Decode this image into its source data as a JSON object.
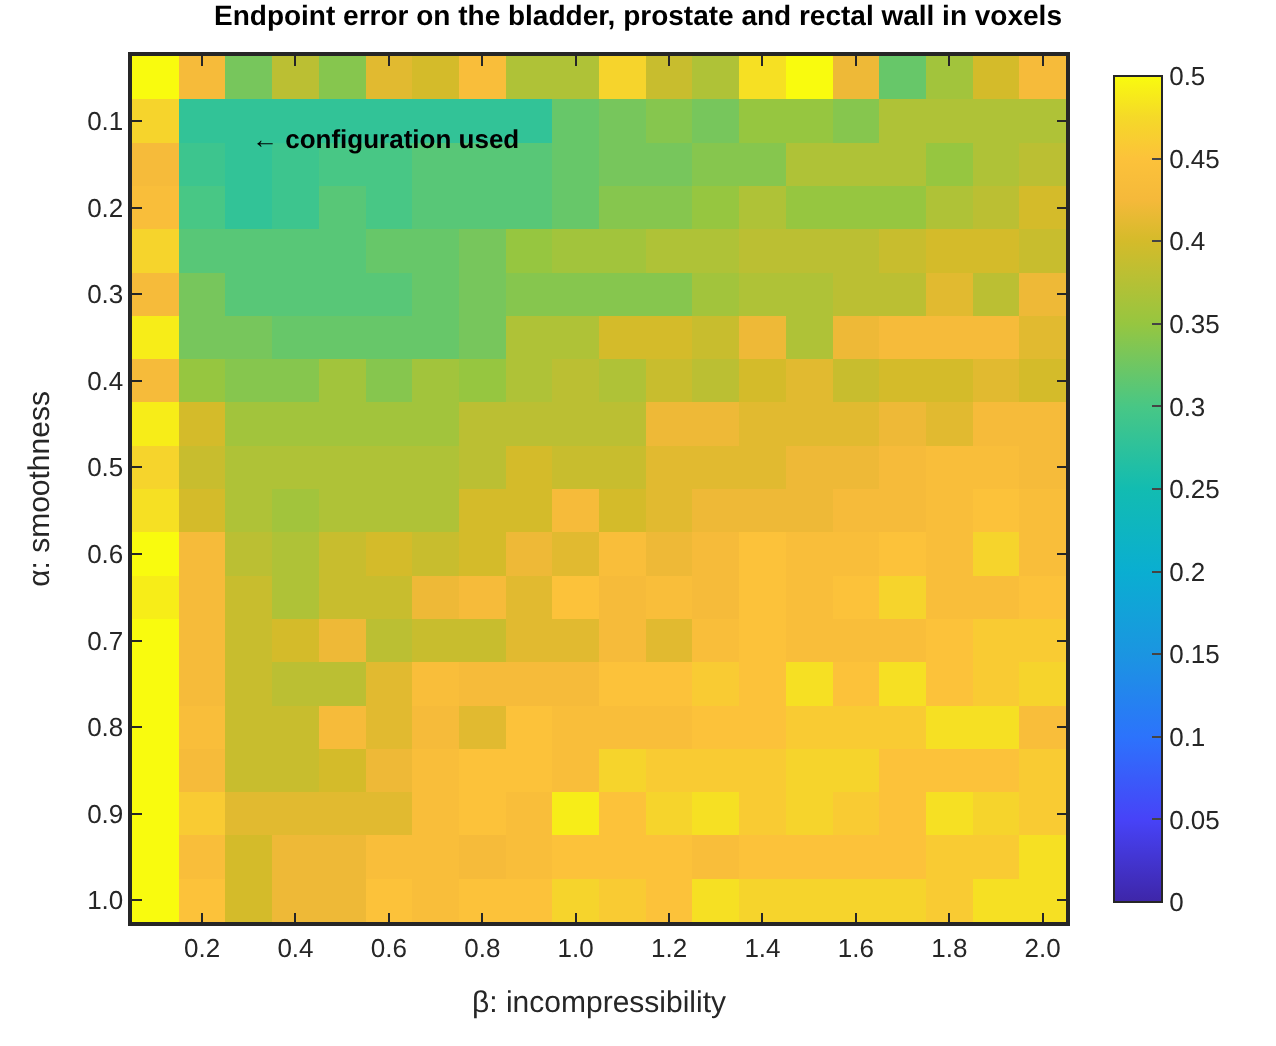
{
  "chart_data": {
    "type": "heatmap",
    "title": "Endpoint error on the bladder, prostate and rectal wall in voxels",
    "xlabel": "β: incompressibility",
    "ylabel": "α: smoothness",
    "x": [
      0.1,
      0.2,
      0.3,
      0.4,
      0.5,
      0.6,
      0.7,
      0.8,
      0.9,
      1.0,
      1.1,
      1.2,
      1.3,
      1.4,
      1.5,
      1.6,
      1.7,
      1.8,
      1.9,
      2.0
    ],
    "y": [
      0.05,
      0.1,
      0.15,
      0.2,
      0.25,
      0.3,
      0.35,
      0.4,
      0.45,
      0.5,
      0.55,
      0.6,
      0.65,
      0.7,
      0.75,
      0.8,
      0.85,
      0.9,
      0.95,
      1.0
    ],
    "xlim": [
      0.05,
      2.05
    ],
    "ylim": [
      1.025,
      0.025
    ],
    "xticks": [
      0.2,
      0.4,
      0.6,
      0.8,
      {
        "value": 1.0,
        "label": "1.0"
      },
      1.2,
      1.4,
      1.6,
      1.8,
      {
        "value": 2.0,
        "label": "2.0"
      }
    ],
    "yticks": [
      0.1,
      0.2,
      0.3,
      0.4,
      0.5,
      0.6,
      0.7,
      0.8,
      0.9,
      {
        "value": 1.0,
        "label": "1.0"
      }
    ],
    "clim": [
      0,
      0.5
    ],
    "cticks": [
      0,
      0.05,
      0.1,
      0.15,
      0.2,
      0.25,
      0.3,
      0.35,
      0.4,
      0.45,
      0.5
    ],
    "annotations": [
      "← configuration used"
    ],
    "cells": [
      [
        0.5,
        0.43,
        0.33,
        0.38,
        0.34,
        0.41,
        0.4,
        0.44,
        0.37,
        0.37,
        0.47,
        0.39,
        0.37,
        0.48,
        0.5,
        0.42,
        0.32,
        0.36,
        0.4,
        0.43
      ],
      [
        0.47,
        0.28,
        0.28,
        0.28,
        0.28,
        0.28,
        0.28,
        0.28,
        0.28,
        0.32,
        0.33,
        0.34,
        0.33,
        0.35,
        0.35,
        0.34,
        0.37,
        0.37,
        0.37,
        0.37
      ],
      [
        0.43,
        0.29,
        0.28,
        0.29,
        0.3,
        0.3,
        0.31,
        0.31,
        0.31,
        0.32,
        0.33,
        0.33,
        0.34,
        0.34,
        0.37,
        0.37,
        0.37,
        0.35,
        0.37,
        0.38
      ],
      [
        0.44,
        0.3,
        0.28,
        0.29,
        0.31,
        0.3,
        0.31,
        0.31,
        0.31,
        0.32,
        0.34,
        0.34,
        0.35,
        0.37,
        0.35,
        0.35,
        0.35,
        0.37,
        0.38,
        0.4
      ],
      [
        0.47,
        0.31,
        0.31,
        0.31,
        0.31,
        0.32,
        0.32,
        0.33,
        0.35,
        0.36,
        0.36,
        0.37,
        0.37,
        0.38,
        0.38,
        0.38,
        0.39,
        0.4,
        0.4,
        0.39
      ],
      [
        0.43,
        0.33,
        0.31,
        0.31,
        0.31,
        0.31,
        0.32,
        0.33,
        0.34,
        0.34,
        0.34,
        0.34,
        0.36,
        0.37,
        0.37,
        0.38,
        0.38,
        0.41,
        0.38,
        0.42
      ],
      [
        0.49,
        0.33,
        0.33,
        0.32,
        0.32,
        0.32,
        0.32,
        0.33,
        0.37,
        0.37,
        0.4,
        0.4,
        0.39,
        0.42,
        0.37,
        0.42,
        0.43,
        0.43,
        0.43,
        0.41
      ],
      [
        0.43,
        0.35,
        0.34,
        0.34,
        0.36,
        0.34,
        0.36,
        0.35,
        0.37,
        0.38,
        0.37,
        0.39,
        0.38,
        0.4,
        0.41,
        0.39,
        0.4,
        0.4,
        0.41,
        0.4
      ],
      [
        0.49,
        0.4,
        0.36,
        0.36,
        0.36,
        0.36,
        0.36,
        0.38,
        0.38,
        0.38,
        0.38,
        0.42,
        0.42,
        0.41,
        0.41,
        0.41,
        0.42,
        0.41,
        0.43,
        0.43
      ],
      [
        0.47,
        0.39,
        0.37,
        0.37,
        0.37,
        0.37,
        0.37,
        0.38,
        0.4,
        0.39,
        0.39,
        0.41,
        0.41,
        0.41,
        0.42,
        0.42,
        0.43,
        0.44,
        0.44,
        0.43
      ],
      [
        0.48,
        0.4,
        0.37,
        0.36,
        0.37,
        0.37,
        0.37,
        0.4,
        0.4,
        0.43,
        0.4,
        0.41,
        0.42,
        0.42,
        0.42,
        0.43,
        0.43,
        0.44,
        0.45,
        0.44
      ],
      [
        0.5,
        0.43,
        0.38,
        0.37,
        0.39,
        0.4,
        0.39,
        0.4,
        0.42,
        0.41,
        0.44,
        0.42,
        0.43,
        0.45,
        0.44,
        0.44,
        0.45,
        0.44,
        0.47,
        0.44
      ],
      [
        0.49,
        0.43,
        0.39,
        0.37,
        0.39,
        0.39,
        0.42,
        0.43,
        0.41,
        0.45,
        0.43,
        0.44,
        0.43,
        0.45,
        0.44,
        0.45,
        0.47,
        0.44,
        0.44,
        0.45
      ],
      [
        0.5,
        0.43,
        0.39,
        0.4,
        0.42,
        0.38,
        0.39,
        0.39,
        0.41,
        0.41,
        0.43,
        0.41,
        0.44,
        0.45,
        0.44,
        0.44,
        0.44,
        0.45,
        0.46,
        0.46
      ],
      [
        0.5,
        0.43,
        0.39,
        0.38,
        0.38,
        0.41,
        0.44,
        0.43,
        0.43,
        0.43,
        0.45,
        0.45,
        0.46,
        0.45,
        0.48,
        0.45,
        0.48,
        0.45,
        0.46,
        0.47
      ],
      [
        0.5,
        0.44,
        0.39,
        0.39,
        0.43,
        0.41,
        0.43,
        0.41,
        0.45,
        0.44,
        0.44,
        0.44,
        0.45,
        0.45,
        0.46,
        0.46,
        0.46,
        0.48,
        0.48,
        0.44
      ],
      [
        0.5,
        0.43,
        0.39,
        0.39,
        0.4,
        0.42,
        0.44,
        0.45,
        0.45,
        0.44,
        0.47,
        0.46,
        0.46,
        0.46,
        0.47,
        0.47,
        0.45,
        0.45,
        0.45,
        0.46
      ],
      [
        0.5,
        0.46,
        0.41,
        0.41,
        0.41,
        0.41,
        0.44,
        0.45,
        0.44,
        0.49,
        0.45,
        0.47,
        0.48,
        0.46,
        0.47,
        0.46,
        0.45,
        0.48,
        0.47,
        0.46
      ],
      [
        0.5,
        0.44,
        0.4,
        0.42,
        0.42,
        0.44,
        0.44,
        0.43,
        0.44,
        0.45,
        0.45,
        0.45,
        0.44,
        0.45,
        0.45,
        0.45,
        0.45,
        0.46,
        0.46,
        0.48
      ],
      [
        0.5,
        0.45,
        0.4,
        0.42,
        0.42,
        0.45,
        0.44,
        0.45,
        0.45,
        0.47,
        0.46,
        0.45,
        0.48,
        0.47,
        0.47,
        0.47,
        0.47,
        0.46,
        0.48,
        0.48
      ]
    ]
  }
}
